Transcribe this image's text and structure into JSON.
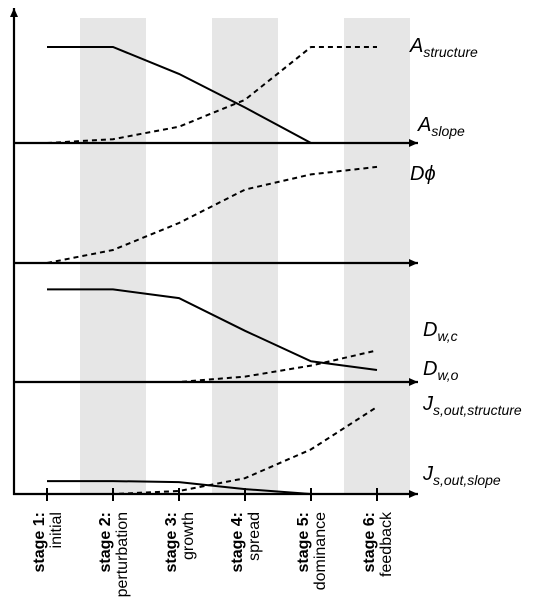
{
  "stages": [
    {
      "label": "stage 1:",
      "name": "initial"
    },
    {
      "label": "stage 2:",
      "name": "perturbation"
    },
    {
      "label": "stage 3:",
      "name": "growth"
    },
    {
      "label": "stage 4:",
      "name": "spread"
    },
    {
      "label": "stage 5:",
      "name": "dominance"
    },
    {
      "label": "stage 6:",
      "name": "feedback"
    }
  ],
  "shaded_stages": [
    2,
    4,
    6
  ],
  "colors": {
    "shade": "#e6e6e6",
    "ink": "#000000"
  },
  "panels": [
    {
      "curves": [
        {
          "style": "solid",
          "label_main": "A",
          "label_sub": "slope",
          "values": [
            1.0,
            1.0,
            0.72,
            0.37,
            0.0,
            0.0
          ]
        },
        {
          "style": "dashed",
          "label_main": "A",
          "label_sub": "structure",
          "values": [
            0.0,
            0.04,
            0.17,
            0.45,
            1.0,
            1.0
          ]
        }
      ]
    },
    {
      "curves": [
        {
          "style": "dashed",
          "label_main": "Dϕ",
          "label_sub": "",
          "values": [
            0.0,
            0.12,
            0.37,
            0.68,
            0.82,
            0.89
          ]
        }
      ]
    },
    {
      "curves": [
        {
          "style": "solid",
          "label_main": "D",
          "label_sub": "w,o",
          "values": [
            0.85,
            0.85,
            0.77,
            0.47,
            0.19,
            0.11
          ]
        },
        {
          "style": "dashed",
          "label_main": "D",
          "label_sub": "w,c",
          "values": [
            0.0,
            0.0,
            0.0,
            0.05,
            0.15,
            0.29
          ]
        }
      ]
    },
    {
      "curves": [
        {
          "style": "solid",
          "label_main": "J",
          "label_sub": "s,out,slope",
          "values": [
            0.13,
            0.13,
            0.12,
            0.05,
            0.0,
            0.0
          ]
        },
        {
          "style": "dashed",
          "label_main": "J",
          "label_sub": "s,out,structure",
          "values": [
            0.0,
            0.0,
            0.03,
            0.16,
            0.45,
            0.88
          ]
        }
      ]
    }
  ]
}
